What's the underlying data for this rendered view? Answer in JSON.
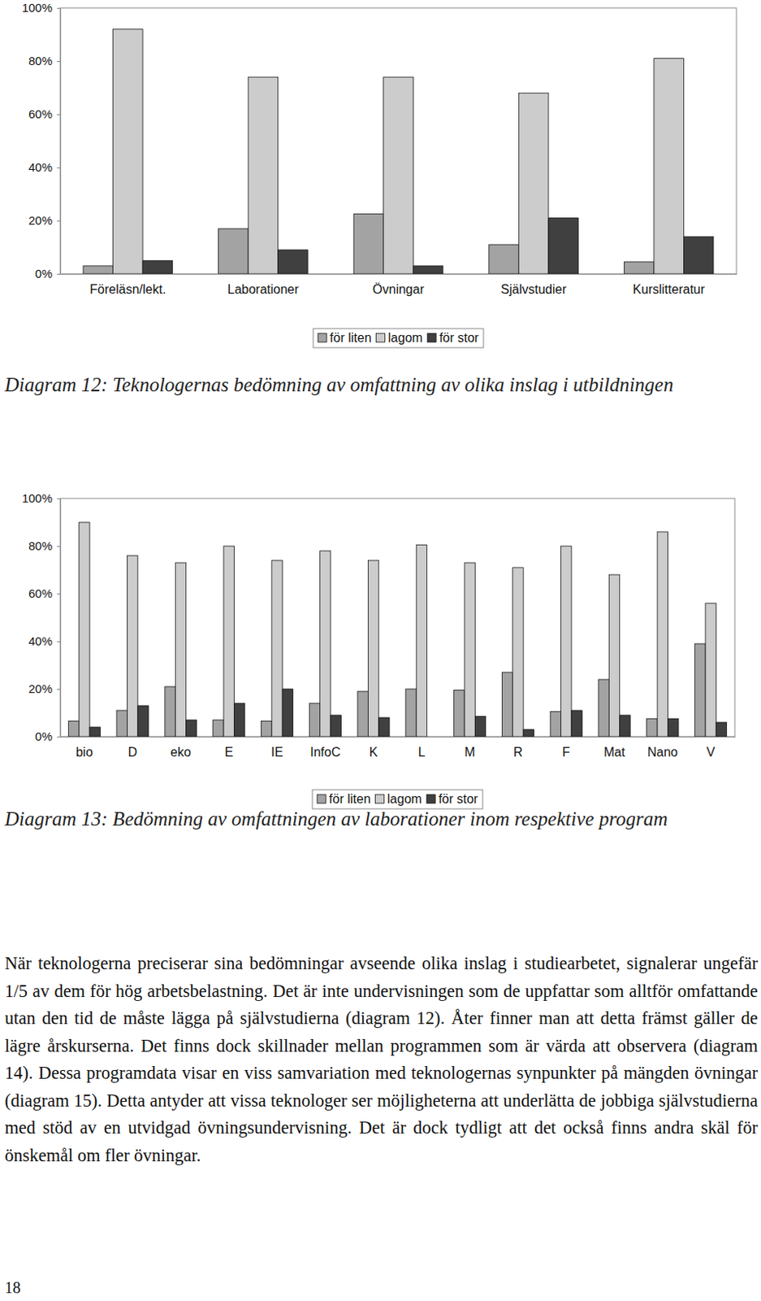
{
  "chart_data": [
    {
      "type": "bar",
      "title": "Diagram 12: Teknologernas bedömning av omfattning av olika inslag i utbildningen",
      "categories": [
        "Föreläsn/lekt.",
        "Laborationer",
        "Övningar",
        "Självstudier",
        "Kurslitteratur"
      ],
      "series": [
        {
          "name": "för liten",
          "color": "#a3a3a3",
          "values": [
            3,
            17,
            22.5,
            11,
            4.5
          ]
        },
        {
          "name": "lagom",
          "color": "#cccccc",
          "values": [
            92,
            74,
            74,
            68,
            81
          ]
        },
        {
          "name": "för stor",
          "color": "#404040",
          "values": [
            5,
            9,
            3,
            21,
            14
          ]
        }
      ],
      "ylim": [
        0,
        100
      ],
      "yticks": [
        {
          "value": 0,
          "label": "0%"
        },
        {
          "value": 20,
          "label": "20%"
        },
        {
          "value": 40,
          "label": "40%"
        },
        {
          "value": 60,
          "label": "60%"
        },
        {
          "value": 80,
          "label": "80%"
        },
        {
          "value": 100,
          "label": "100%"
        }
      ],
      "grid": false,
      "legend": "bottom"
    },
    {
      "type": "bar",
      "title": "Diagram 13: Bedömning av omfattningen av laborationer inom respektive program",
      "categories": [
        "bio",
        "D",
        "eko",
        "E",
        "IE",
        "InfoC",
        "K",
        "L",
        "M",
        "R",
        "F",
        "Mat",
        "Nano",
        "V"
      ],
      "series": [
        {
          "name": "för liten",
          "color": "#a3a3a3",
          "values": [
            6.5,
            11,
            21,
            7,
            6.5,
            14,
            19,
            20,
            19.5,
            27,
            10.5,
            24,
            7.5,
            39
          ]
        },
        {
          "name": "lagom",
          "color": "#cccccc",
          "values": [
            90,
            76,
            73,
            80,
            74,
            78,
            74,
            80.5,
            73,
            71,
            80,
            68,
            86,
            56
          ]
        },
        {
          "name": "för stor",
          "color": "#404040",
          "values": [
            4,
            13,
            7,
            14,
            20,
            9,
            8,
            0,
            8.5,
            3,
            11,
            9,
            7.5,
            6
          ]
        }
      ],
      "ylim": [
        0,
        100
      ],
      "yticks": [
        {
          "value": 0,
          "label": "0%"
        },
        {
          "value": 20,
          "label": "20%"
        },
        {
          "value": 40,
          "label": "40%"
        },
        {
          "value": 60,
          "label": "60%"
        },
        {
          "value": 80,
          "label": "80%"
        },
        {
          "value": 100,
          "label": "100%"
        }
      ],
      "grid": false,
      "legend": "bottom"
    }
  ],
  "body": "När teknologerna preciserar sina bedömningar avseende olika inslag i studiearbetet, signalerar ungefär 1/5 av dem för hög arbetsbelastning. Det är inte undervisningen som de uppfattar som alltför omfattande utan den tid de måste lägga på självstudierna (diagram 12). Åter finner man att detta främst gäller de lägre årskurserna. Det finns dock skillnader mellan programmen som är värda att observera (diagram 14). Dessa programdata visar en viss samvariation med teknologernas synpunkter på mängden övningar (diagram 15). Detta antyder att vissa teknologer ser möjligheterna att underlätta de jobbiga självstudierna med stöd av en utvidgad övningsundervisning. Det är dock tydligt att det också finns andra skäl för önskemål om fler övningar.",
  "page_number": "18"
}
